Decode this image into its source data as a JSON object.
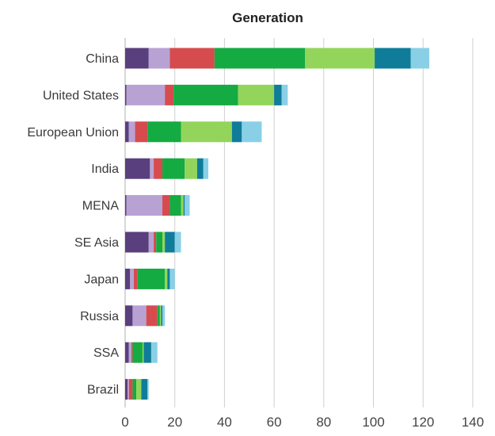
{
  "chart_data": {
    "type": "bar",
    "orientation": "horizontal",
    "stacked": true,
    "title": "Generation",
    "xlabel": "",
    "ylabel": "",
    "xlim": [
      0,
      140
    ],
    "xticks": [
      0,
      20,
      40,
      60,
      80,
      100,
      120,
      140
    ],
    "grid": "vertical",
    "legend": "none",
    "categories": [
      "China",
      "United States",
      "European Union",
      "India",
      "MENA",
      "SE Asia",
      "Japan",
      "Russia",
      "SSA",
      "Brazil"
    ],
    "series": [
      {
        "color": "#5a3f7e",
        "values": [
          9.5,
          0.5,
          1.5,
          10,
          0.5,
          9.5,
          2,
          3,
          1.5,
          1
        ]
      },
      {
        "color": "#b8a2d4",
        "values": [
          8.5,
          15.5,
          2.5,
          1.5,
          14.5,
          2,
          1.5,
          5.5,
          1,
          0.5
        ]
      },
      {
        "color": "#d64b4e",
        "values": [
          18,
          3.5,
          5,
          3.5,
          3,
          1,
          1.5,
          4.5,
          0.5,
          1.5
        ]
      },
      {
        "color": "#14ab42",
        "values": [
          36.5,
          26,
          13.5,
          9,
          4.5,
          2.5,
          11,
          1,
          4,
          1.5
        ]
      },
      {
        "color": "#93d55a",
        "values": [
          28,
          14.5,
          20.5,
          5,
          1,
          1,
          1,
          0.5,
          0.5,
          2
        ]
      },
      {
        "color": "#0f7c99",
        "values": [
          14.5,
          3,
          4,
          2.5,
          0.5,
          4,
          1,
          0.5,
          3,
          2.5
        ]
      },
      {
        "color": "#89d0e7",
        "values": [
          7.5,
          2.5,
          8,
          2,
          2,
          2.5,
          2,
          1,
          2.5,
          0.5
        ]
      }
    ]
  }
}
